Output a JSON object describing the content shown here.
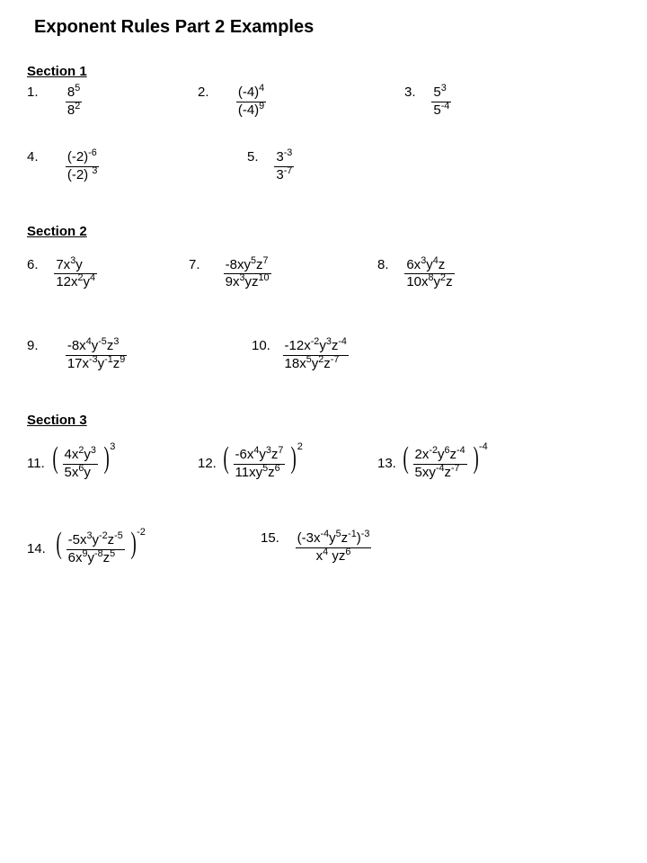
{
  "title": "Exponent Rules Part 2 Examples",
  "sec1_label": "Section 1",
  "sec2_label": "Section 2",
  "sec3_label": "Section 3",
  "p1": {
    "n": "1.",
    "topB": "8",
    "topE": "5",
    "botB": "8",
    "botE": "2"
  },
  "p2": {
    "n": "2.",
    "topB": "(-4)",
    "topE": "4",
    "botB": "(-4)",
    "botE": "9"
  },
  "p3": {
    "n": "3.",
    "topB": "5",
    "topE": "3",
    "botB": "5",
    "botE": "-4"
  },
  "p4": {
    "n": "4.",
    "topB": "(-2)",
    "topE": "-6",
    "botB": "(-2) ",
    "botE": "3"
  },
  "p5": {
    "n": "5.",
    "topB": "3",
    "topE": "-3",
    "botB": "3",
    "botE": "-7"
  },
  "p6": {
    "n": "6.",
    "top": "7x<sup>3</sup>y",
    "bot": "12x<sup>2</sup>y<sup>4</sup>"
  },
  "p7": {
    "n": "7.",
    "top": "-8xy<sup>5</sup>z<sup>7</sup>",
    "bot": "9x<sup>3</sup>yz<sup>10</sup>"
  },
  "p8": {
    "n": "8.",
    "top": "6x<sup>3</sup>y<sup>4</sup>z",
    "bot": "10x<sup>8</sup>y<sup>2</sup>z"
  },
  "p9": {
    "n": "9.",
    "top": "-8x<sup>4</sup>y<sup>-5</sup>z<sup>3</sup>",
    "bot": "17x<sup>-3</sup>y<sup>-1</sup>z<sup>9</sup>"
  },
  "p10": {
    "n": "10.",
    "top": "-12x<sup>-2</sup>y<sup>3</sup>z<sup>-4</sup>",
    "bot": "18x<sup>5</sup>y<sup>2</sup>z<sup>-7</sup>"
  },
  "p11": {
    "n": "11.",
    "top": "4x<sup>2</sup>y<sup>3</sup>",
    "bot": "5x<sup>6</sup>y",
    "exp": "3"
  },
  "p12": {
    "n": "12.",
    "top": "-6x<sup>4</sup>y<sup>3</sup>z<sup>7</sup>",
    "bot": "11xy<sup>5</sup>z<sup>6</sup>",
    "exp": "2"
  },
  "p13": {
    "n": "13.",
    "top": "2x<sup>-2</sup>y<sup>6</sup>z<sup>-4</sup>",
    "bot": "5xy<sup>-4</sup>z<sup>-7</sup>",
    "exp": "-4"
  },
  "p14": {
    "n": "14.",
    "top": "-5x<sup>3</sup>y<sup>-2</sup>z<sup>-5</sup>",
    "bot": "6x<sup>9</sup>y<sup>-8</sup>z<sup>5</sup>",
    "exp": "-2"
  },
  "p15": {
    "n": "15.",
    "top": "(-3x<sup>-4</sup>y<sup>5</sup>z<sup>-1</sup>)<sup>-3</sup>",
    "bot": "x<sup>4</sup> yz<sup>6</sup>"
  }
}
